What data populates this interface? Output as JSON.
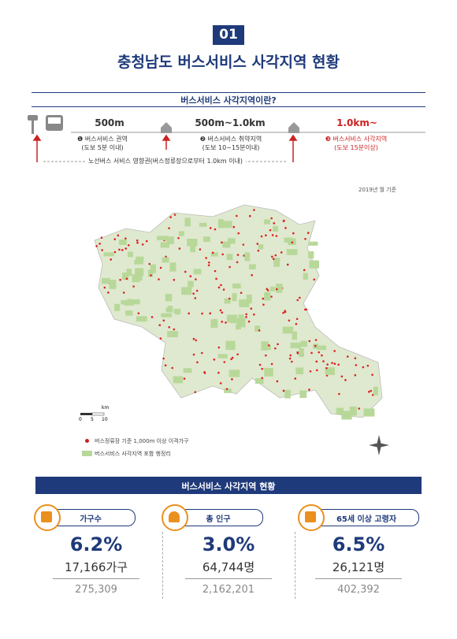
{
  "header": {
    "badge": "01",
    "title": "충청남도 버스서비스 사각지역 현황"
  },
  "definition": {
    "title": "버스서비스 사각지역이란?",
    "distances": [
      "500m",
      "500m~1.0km",
      "1.0km~"
    ],
    "zones": [
      {
        "name": "❶ 버스서비스 권역",
        "note": "(도보 5분 이내)"
      },
      {
        "name": "❷ 버스서비스 취약지역",
        "note": "(도보 10~15분이내)"
      },
      {
        "name": "❸ 버스서비스 사각지역",
        "note": "(도보 15분이상)"
      }
    ],
    "range": "노선버스 서비스 영향권(버스정류장으로부터 1.0km 이내)"
  },
  "map": {
    "date_note": "2019년 월 기준",
    "scale": [
      "0",
      "5",
      "10",
      "km"
    ],
    "legend": [
      "버스정류장 기준 1,000m 이상 이격가구",
      "버스서비스 사각지역 포함 행정리"
    ]
  },
  "stats": {
    "title": "버스서비스 사각지역 현황",
    "items": [
      {
        "label": "가구수",
        "percent": "6.2%",
        "count": "17,166가구",
        "total": "275,309"
      },
      {
        "label": "총 인구",
        "percent": "3.0%",
        "count": "64,744명",
        "total": "2,162,201"
      },
      {
        "label": "65세 이상 고령자",
        "percent": "6.5%",
        "count": "26,121명",
        "total": "402,392"
      }
    ]
  }
}
